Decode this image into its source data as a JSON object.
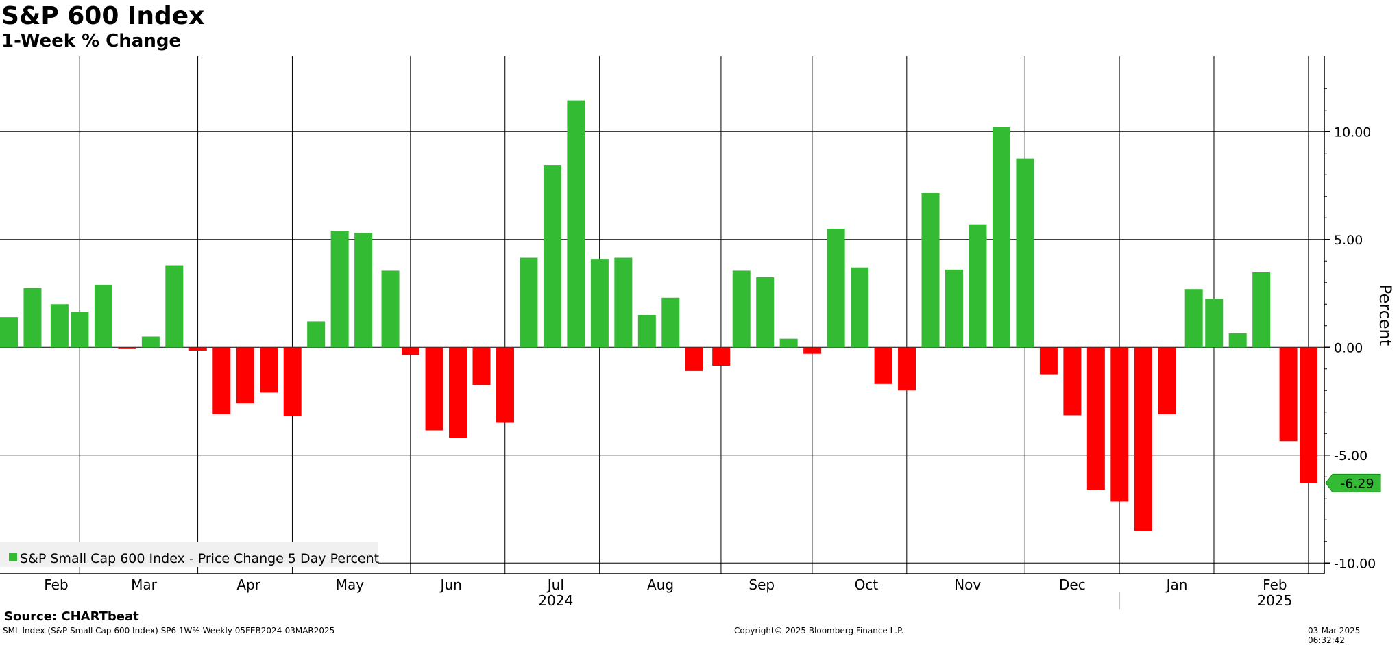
{
  "header": {
    "title": "S&P 600 Index",
    "subtitle": "1-Week % Change"
  },
  "chart_data": {
    "type": "bar",
    "ylabel": "Percent",
    "ylim": [
      -10.5,
      13.5
    ],
    "yticks": [
      10.0,
      5.0,
      0.0,
      -5.0,
      -10.0
    ],
    "ytick_labels": [
      "10.00",
      "5.00",
      "0.00",
      "-5.00",
      "-10.00"
    ],
    "grid": true,
    "legend_position": "bottom-left",
    "series": [
      {
        "name": "S&P Small Cap 600 Index - Price Change 5 Day Percent",
        "color": "#33bb33",
        "negative_color": "#ff0000",
        "x": [
          "2024-02-05",
          "2024-02-12",
          "2024-02-20",
          "2024-02-26",
          "2024-03-04",
          "2024-03-11",
          "2024-03-18",
          "2024-03-25",
          "2024-04-01",
          "2024-04-08",
          "2024-04-15",
          "2024-04-22",
          "2024-04-29",
          "2024-05-06",
          "2024-05-13",
          "2024-05-20",
          "2024-05-28",
          "2024-06-03",
          "2024-06-10",
          "2024-06-17",
          "2024-06-24",
          "2024-07-01",
          "2024-07-08",
          "2024-07-15",
          "2024-07-22",
          "2024-07-29",
          "2024-08-05",
          "2024-08-12",
          "2024-08-19",
          "2024-08-26",
          "2024-09-03",
          "2024-09-09",
          "2024-09-16",
          "2024-09-23",
          "2024-09-30",
          "2024-10-07",
          "2024-10-14",
          "2024-10-21",
          "2024-10-28",
          "2024-11-04",
          "2024-11-11",
          "2024-11-18",
          "2024-11-25",
          "2024-12-02",
          "2024-12-09",
          "2024-12-16",
          "2024-12-23",
          "2024-12-30",
          "2025-01-06",
          "2025-01-13",
          "2025-01-21",
          "2025-01-27",
          "2025-02-03",
          "2025-02-10",
          "2025-02-18",
          "2025-02-24"
        ],
        "values": [
          1.4,
          2.75,
          2.0,
          1.65,
          2.9,
          -0.05,
          0.5,
          3.8,
          -0.15,
          -3.1,
          -2.6,
          -2.1,
          -3.2,
          1.2,
          5.4,
          5.3,
          3.55,
          -0.35,
          -3.85,
          -4.2,
          -1.75,
          -3.5,
          4.15,
          8.45,
          11.45,
          4.1,
          4.15,
          1.5,
          2.3,
          -1.1,
          -0.85,
          3.55,
          3.25,
          0.4,
          -0.3,
          5.5,
          3.7,
          -1.7,
          -2.0,
          7.15,
          3.6,
          5.7,
          10.2,
          8.75,
          -1.25,
          -3.15,
          -6.6,
          -7.15,
          -8.5,
          -3.1,
          2.7,
          2.25,
          0.65,
          3.5,
          -4.35,
          -6.29
        ]
      }
    ],
    "last_value_label": "-6.29",
    "month_labels": [
      {
        "label": "Feb",
        "center": "2024-02-19"
      },
      {
        "label": "Mar",
        "center": "2024-03-16"
      },
      {
        "label": "Apr",
        "center": "2024-04-16"
      },
      {
        "label": "May",
        "center": "2024-05-16"
      },
      {
        "label": "Jun",
        "center": "2024-06-15"
      },
      {
        "label": "Jul",
        "center": "2024-07-16"
      },
      {
        "label": "Aug",
        "center": "2024-08-16"
      },
      {
        "label": "Sep",
        "center": "2024-09-15"
      },
      {
        "label": "Oct",
        "center": "2024-10-16"
      },
      {
        "label": "Nov",
        "center": "2024-11-15"
      },
      {
        "label": "Dec",
        "center": "2024-12-16"
      },
      {
        "label": "Jan",
        "center": "2025-01-16"
      },
      {
        "label": "Feb",
        "center": "2025-02-14"
      }
    ],
    "month_boundaries": [
      "2024-02-26",
      "2024-04-01",
      "2024-04-29",
      "2024-06-03",
      "2024-07-01",
      "2024-07-29",
      "2024-09-03",
      "2024-09-30",
      "2024-10-28",
      "2024-12-02",
      "2024-12-30",
      "2025-01-27",
      "2025-02-24"
    ],
    "year_labels": [
      {
        "label": "2024",
        "center": "2024-07-16"
      },
      {
        "label": "2025",
        "center": "2025-02-14"
      }
    ],
    "year_boundary": "2024-12-30"
  },
  "source": "Source: CHARTbeat",
  "footer": {
    "left": "SML Index (S&P Small Cap 600 Index) SP6 1W%  Weekly 05FEB2024-03MAR2025",
    "center": "Copyright© 2025 Bloomberg Finance L.P.",
    "right": "03-Mar-2025 06:32:42"
  },
  "colors": {
    "positive": "#33bb33",
    "negative": "#ff0000",
    "grid": "#000000",
    "label_box": "#33bb33",
    "legend_bg": "#f0f0f0"
  }
}
